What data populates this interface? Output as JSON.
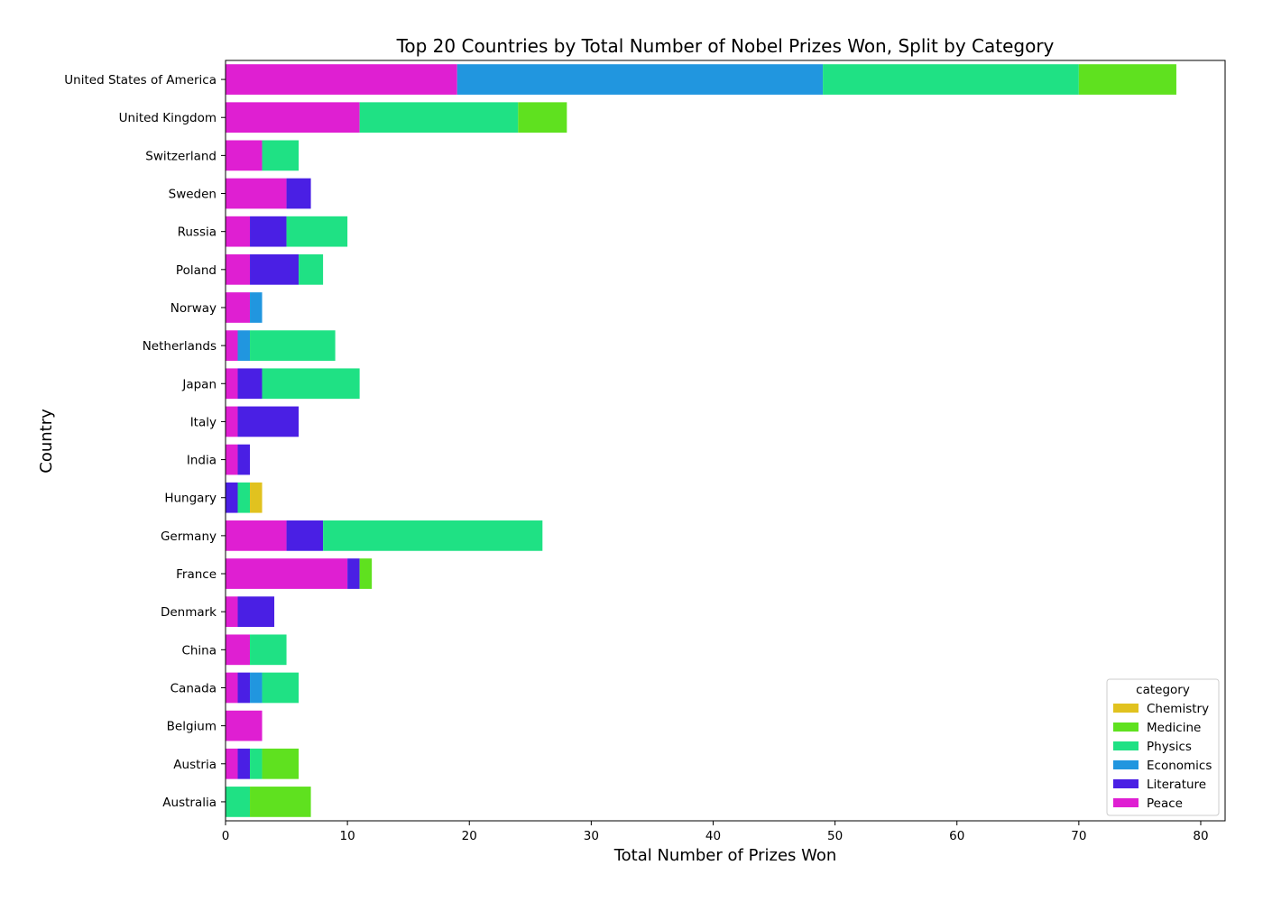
{
  "chart_data": {
    "type": "bar",
    "orientation": "horizontal",
    "stacked": true,
    "title": "Top 20 Countries by Total Number of Nobel Prizes Won, Split by Category",
    "xlabel": "Total Number of Prizes Won",
    "ylabel": "Country",
    "xlim": [
      0,
      82
    ],
    "xticks": [
      0,
      10,
      20,
      30,
      40,
      50,
      60,
      70,
      80
    ],
    "grid": false,
    "legend_position": "lower-right",
    "legend_title": "category",
    "categories": [
      "United States of America",
      "United Kingdom",
      "Switzerland",
      "Sweden",
      "Russia",
      "Poland",
      "Norway",
      "Netherlands",
      "Japan",
      "Italy",
      "India",
      "Hungary",
      "Germany",
      "France",
      "Denmark",
      "China",
      "Canada",
      "Belgium",
      "Austria",
      "Australia"
    ],
    "series": [
      {
        "name": "Peace",
        "color": "#df1fd2",
        "values": [
          19,
          11,
          3,
          5,
          2,
          2,
          2,
          1,
          1,
          1,
          1,
          0,
          5,
          10,
          1,
          2,
          1,
          3,
          1,
          0
        ]
      },
      {
        "name": "Literature",
        "color": "#4a1fe4",
        "values": [
          0,
          0,
          0,
          2,
          3,
          4,
          0,
          0,
          2,
          5,
          1,
          1,
          3,
          1,
          3,
          0,
          1,
          0,
          1,
          0
        ]
      },
      {
        "name": "Economics",
        "color": "#2196df",
        "values": [
          30,
          0,
          0,
          0,
          0,
          0,
          1,
          1,
          0,
          0,
          0,
          0,
          0,
          0,
          0,
          0,
          1,
          0,
          0,
          0
        ]
      },
      {
        "name": "Physics",
        "color": "#1fe184",
        "values": [
          21,
          13,
          3,
          0,
          5,
          2,
          0,
          7,
          8,
          0,
          0,
          1,
          18,
          0,
          0,
          3,
          3,
          0,
          1,
          2
        ]
      },
      {
        "name": "Medicine",
        "color": "#5fe11f",
        "values": [
          8,
          4,
          0,
          0,
          0,
          0,
          0,
          0,
          0,
          0,
          0,
          0,
          0,
          1,
          0,
          0,
          0,
          0,
          3,
          5
        ]
      },
      {
        "name": "Chemistry",
        "color": "#e1c21f",
        "values": [
          0,
          0,
          0,
          0,
          0,
          0,
          0,
          0,
          0,
          0,
          0,
          1,
          0,
          0,
          0,
          0,
          0,
          0,
          0,
          0
        ]
      }
    ],
    "legend_order": [
      "Chemistry",
      "Medicine",
      "Physics",
      "Economics",
      "Literature",
      "Peace"
    ]
  }
}
